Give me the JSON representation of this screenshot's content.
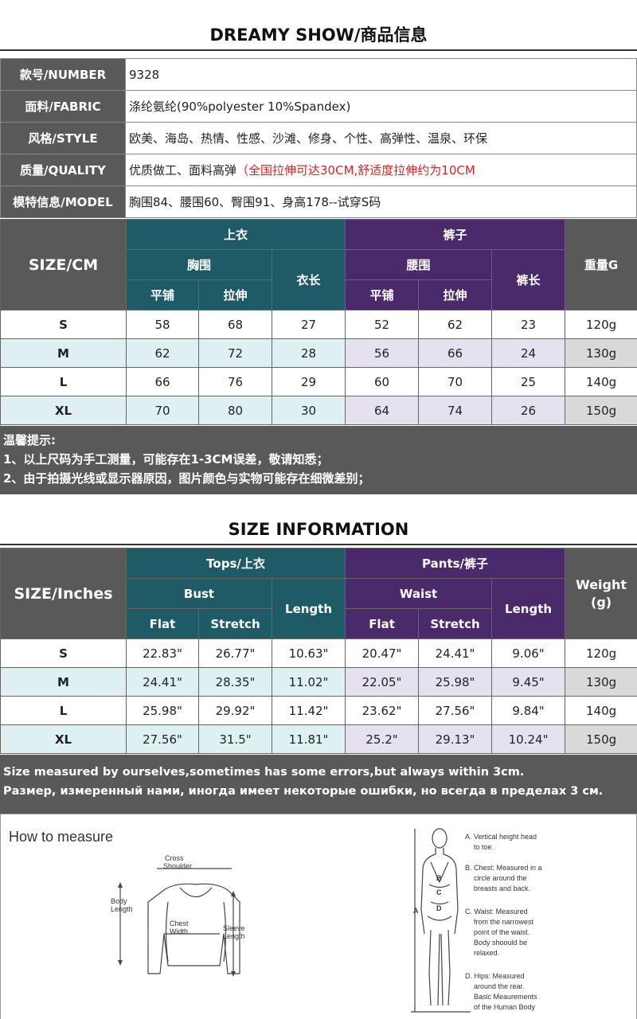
{
  "section1": {
    "title": "DREAMY SHOW/商品信息",
    "info": [
      {
        "key": "款号/NUMBER",
        "value": "9328"
      },
      {
        "key": "面料/FABRIC",
        "value": "涤纶氨纶(90%polyester 10%Spandex)"
      },
      {
        "key": "风格/STYLE",
        "value": "欧美、海岛、热情、性感、沙滩、修身、个性、高弹性、温泉、环保"
      },
      {
        "key": "质量/QUALITY",
        "value": "优质做工、面料高弹",
        "value_red": "（全国拉伸可达30CM,舒适度拉伸约为10CM"
      },
      {
        "key": "模特信息/MODEL",
        "value": "胸围84、腰围60、臀围91、身高178--试穿S码"
      }
    ],
    "table": {
      "size_label": "SIZE/CM",
      "top_group": "上衣",
      "pants_group": "裤子",
      "weight_label": "重量G",
      "bust": "胸围",
      "top_length": "衣长",
      "waist": "腰围",
      "pants_length": "裤长",
      "flat": "平铺",
      "stretch": "拉伸",
      "rows": [
        {
          "size": "S",
          "bust_flat": "58",
          "bust_stretch": "68",
          "top_len": "27",
          "waist_flat": "52",
          "waist_stretch": "62",
          "pants_len": "23",
          "weight": "120g"
        },
        {
          "size": "M",
          "bust_flat": "62",
          "bust_stretch": "72",
          "top_len": "28",
          "waist_flat": "56",
          "waist_stretch": "66",
          "pants_len": "24",
          "weight": "130g"
        },
        {
          "size": "L",
          "bust_flat": "66",
          "bust_stretch": "76",
          "top_len": "29",
          "waist_flat": "60",
          "waist_stretch": "70",
          "pants_len": "25",
          "weight": "140g"
        },
        {
          "size": "XL",
          "bust_flat": "70",
          "bust_stretch": "80",
          "top_len": "30",
          "waist_flat": "64",
          "waist_stretch": "74",
          "pants_len": "26",
          "weight": "150g"
        }
      ]
    },
    "notes": [
      "温馨提示:",
      "1、以上尺码为手工测量，可能存在1-3CM误差，敬请知悉；",
      "2、由于拍摄光线或显示器原因，图片颜色与实物可能存在细微差别；"
    ]
  },
  "section2": {
    "title": "SIZE INFORMATION",
    "table": {
      "size_label": "SIZE/Inches",
      "top_group": "Tops/上衣",
      "pants_group": "Pants/裤子",
      "weight_label_1": "Weight",
      "weight_label_2": "(g)",
      "bust": "Bust",
      "top_length": "Length",
      "waist": "Waist",
      "pants_length": "Length",
      "flat": "Flat",
      "stretch": "Stretch",
      "rows": [
        {
          "size": "S",
          "bust_flat": "22.83\"",
          "bust_stretch": "26.77\"",
          "top_len": "10.63\"",
          "waist_flat": "20.47\"",
          "waist_stretch": "24.41\"",
          "pants_len": "9.06\"",
          "weight": "120g"
        },
        {
          "size": "M",
          "bust_flat": "24.41\"",
          "bust_stretch": "28.35\"",
          "top_len": "11.02\"",
          "waist_flat": "22.05\"",
          "waist_stretch": "25.98\"",
          "pants_len": "9.45\"",
          "weight": "130g"
        },
        {
          "size": "L",
          "bust_flat": "25.98\"",
          "bust_stretch": "29.92\"",
          "top_len": "11.42\"",
          "waist_flat": "23.62\"",
          "waist_stretch": "27.56\"",
          "pants_len": "9.84\"",
          "weight": "140g"
        },
        {
          "size": "XL",
          "bust_flat": "27.56\"",
          "bust_stretch": "31.5\"",
          "top_len": "11.81\"",
          "waist_flat": "25.2\"",
          "waist_stretch": "29.13\"",
          "pants_len": "10.24\"",
          "weight": "150g"
        }
      ]
    },
    "notes": [
      "Size measured by ourselves,sometimes has some errors,but always within 3cm.",
      "Размер, измеренный нами, иногда имеет некоторые ошибки, но всегда в пределах 3 см."
    ]
  },
  "measure": {
    "title": "How to measure",
    "sweater_labels": {
      "cross1": "Cross",
      "cross2": "Shoulder",
      "body1": "Body",
      "body2": "Length",
      "chest1": "Chest",
      "chest2": "Width",
      "sleeve1": "Sleeve",
      "sleeve2": "Length"
    },
    "figure_letters": {
      "a": "A",
      "b": "B",
      "c": "C",
      "d": "D"
    },
    "legend": [
      [
        "A. Vertical height head",
        "to toe."
      ],
      [
        "B. Chest: Measured in a",
        "circle around the",
        "breasts and back."
      ],
      [
        "C. Waist: Measured",
        "from the narrowest",
        "point of the waist.",
        "Body shoould be",
        "relaxed."
      ],
      [
        "D. Hips: Measured",
        "around the rear.",
        "Basic Meaurements",
        "of the Human Body"
      ]
    ]
  }
}
